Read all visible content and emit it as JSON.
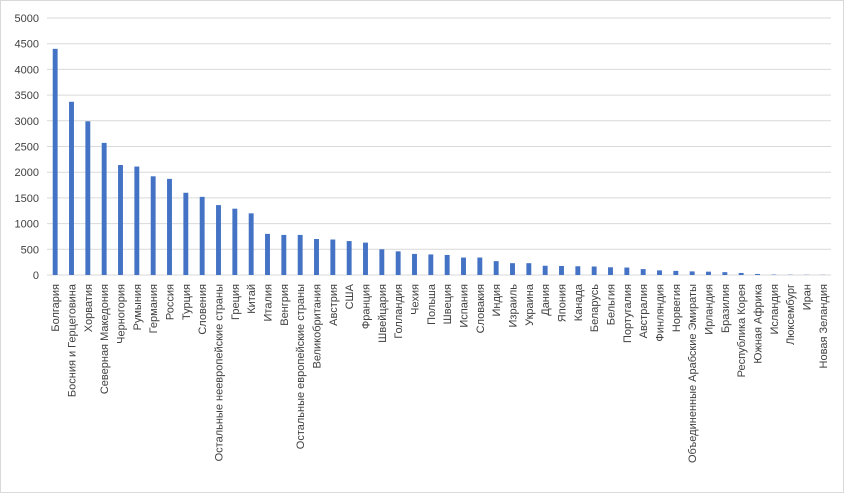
{
  "chart_data": {
    "type": "bar",
    "title": "",
    "xlabel": "",
    "ylabel": "",
    "ylim": [
      0,
      5000
    ],
    "yticks": [
      0,
      500,
      1000,
      1500,
      2000,
      2500,
      3000,
      3500,
      4000,
      4500,
      5000
    ],
    "grid": true,
    "legend": "none",
    "bar_color": "#4472c4",
    "grid_color": "#d9d9d9",
    "categories": [
      "Болгария",
      "Босния и Герцеговина",
      "Хорватия",
      "Северная Македония",
      "Черногория",
      "Румыния",
      "Германия",
      "Россия",
      "Турция",
      "Словения",
      "Остальные неевропейские страны",
      "Греция",
      "Китай",
      "Италия",
      "Венгрия",
      "Остальные европейские страны",
      "Великобритания",
      "Австрия",
      "США",
      "Франция",
      "Швейцария",
      "Голландия",
      "Чехия",
      "Польша",
      "Швеция",
      "Испания",
      "Словакия",
      "Индия",
      "Израиль",
      "Украина",
      "Дания",
      "Япония",
      "Канада",
      "Беларусь",
      "Бельгия",
      "Португалия",
      "Австралия",
      "Финляндия",
      "Норвегия",
      "Объединенные Арабские Эмираты",
      "Ирландия",
      "Бразилия",
      "Республика Корея",
      "Южная Африка",
      "Исландия",
      "Люксембург",
      "Иран",
      "Новая Зеландия"
    ],
    "values": [
      4400,
      3370,
      2990,
      2570,
      2140,
      2110,
      1920,
      1870,
      1600,
      1520,
      1360,
      1290,
      1200,
      800,
      780,
      780,
      700,
      690,
      660,
      630,
      500,
      460,
      410,
      400,
      390,
      340,
      340,
      270,
      230,
      230,
      180,
      175,
      170,
      165,
      150,
      145,
      115,
      90,
      80,
      70,
      65,
      55,
      40,
      20,
      8,
      5,
      4,
      3
    ]
  }
}
